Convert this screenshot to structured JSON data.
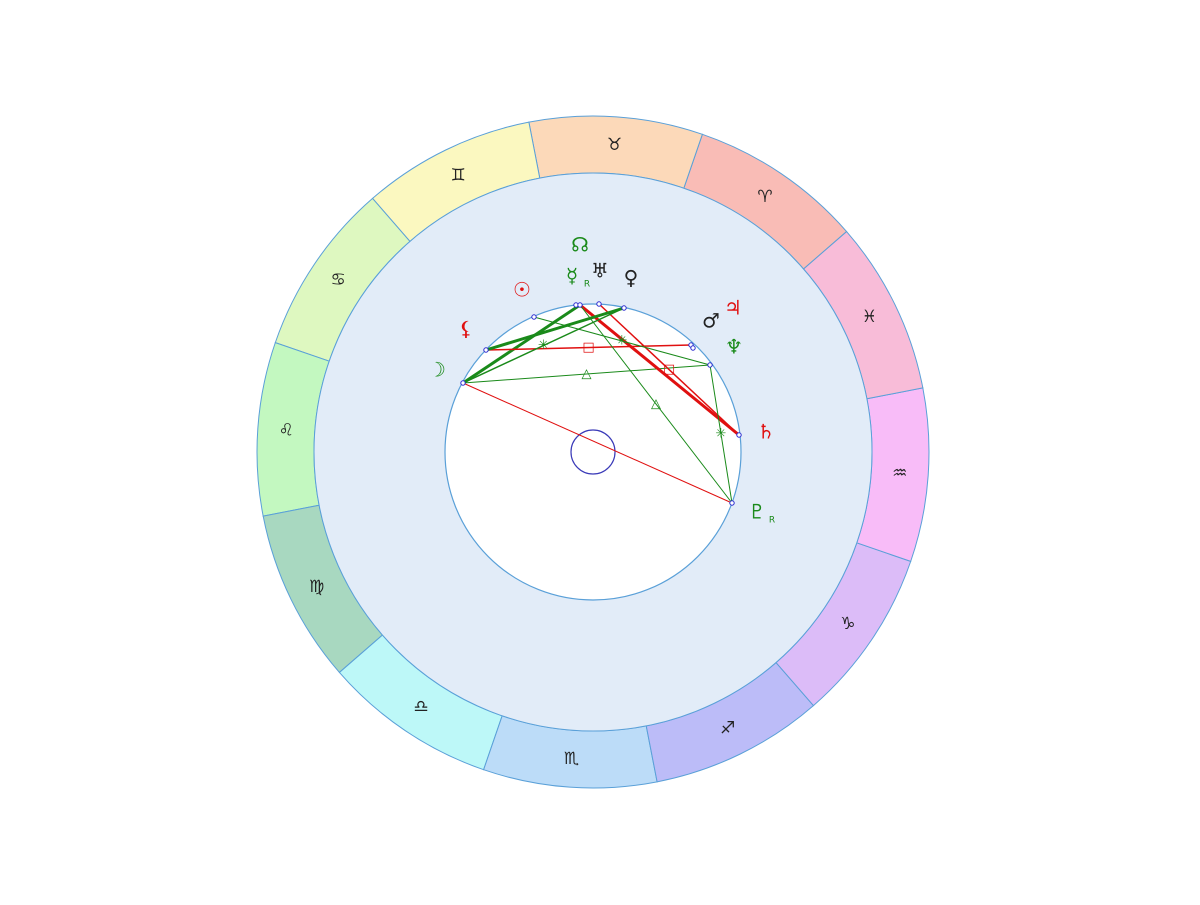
{
  "zodiac": [
    "♈",
    "♉",
    "♊",
    "♋",
    "♌",
    "♍",
    "♎",
    "♏",
    "♐",
    "♑",
    "♒",
    "♓"
  ],
  "planets": [
    {
      "glyph": "☽"
    },
    {
      "glyph": "⚸"
    },
    {
      "glyph": "☉"
    },
    {
      "glyph": "☊"
    },
    {
      "glyph": "☿",
      "retro": "R"
    },
    {
      "glyph": "♅"
    },
    {
      "glyph": "♀"
    },
    {
      "glyph": "♂"
    },
    {
      "glyph": "♃"
    },
    {
      "glyph": "♆"
    },
    {
      "glyph": "♄"
    },
    {
      "glyph": "♇",
      "retro": "R"
    }
  ],
  "aspects": [
    "△",
    "□",
    "△",
    "□",
    "✳",
    "✳",
    "✳"
  ]
}
